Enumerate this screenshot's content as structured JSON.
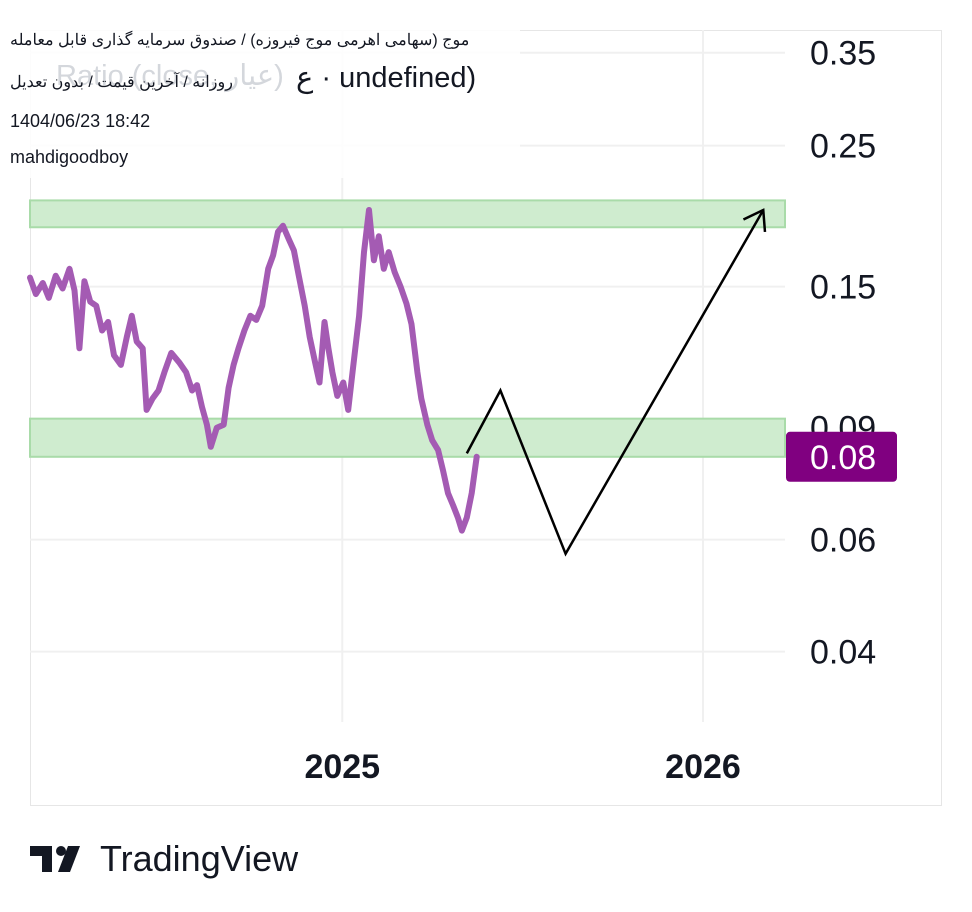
{
  "header": {
    "symbol": "موج (سهامی اهرمی موج فیروزه) / صندوق سرمایه گذاری قابل معامله",
    "interval": "روزانه / آخرین قیمت / بدون تعدیل",
    "watermark": "Ratio (close, عیار)",
    "watermark_suffix": "ع · undefined)",
    "datetime": "1404/06/23 18:42",
    "author": "mahdigoodboy"
  },
  "brand": {
    "name": "TradingView"
  },
  "colors": {
    "series": "#a45bb3",
    "zone_fill": "#cfeccf",
    "zone_border": "#a9dba9",
    "price_tag": "#800080",
    "drawing": "#000000",
    "grid": "#f0f0f0",
    "axis_text": "#131722"
  },
  "chart_data": {
    "type": "line",
    "y_scale": "log",
    "ylim": [
      0.031,
      0.38
    ],
    "y_ticks": [
      "0.35",
      "0.25",
      "0.15",
      "0.09",
      "0.06",
      "0.04"
    ],
    "y_tick_values": [
      0.35,
      0.25,
      0.15,
      0.09,
      0.06,
      0.04
    ],
    "x_ticks": [
      "2025",
      "2026"
    ],
    "x_tick_dates": [
      "2025-01-01",
      "2026-01-01"
    ],
    "xlim": [
      "2024-02-20",
      "2026-03-25"
    ],
    "last_price_label": "0.08",
    "last_price": 0.081,
    "zones": [
      {
        "from": 0.186,
        "to": 0.205
      },
      {
        "from": 0.081,
        "to": 0.093
      }
    ],
    "series": [
      {
        "values": [
          [
            "2024-02-20",
            0.155
          ],
          [
            "2024-02-26",
            0.146
          ],
          [
            "2024-03-04",
            0.152
          ],
          [
            "2024-03-10",
            0.144
          ],
          [
            "2024-03-17",
            0.156
          ],
          [
            "2024-03-24",
            0.149
          ],
          [
            "2024-03-31",
            0.16
          ],
          [
            "2024-04-05",
            0.148
          ],
          [
            "2024-04-10",
            0.12
          ],
          [
            "2024-04-15",
            0.153
          ],
          [
            "2024-04-21",
            0.142
          ],
          [
            "2024-04-27",
            0.14
          ],
          [
            "2024-05-03",
            0.128
          ],
          [
            "2024-05-09",
            0.132
          ],
          [
            "2024-05-15",
            0.117
          ],
          [
            "2024-05-22",
            0.113
          ],
          [
            "2024-05-28",
            0.125
          ],
          [
            "2024-06-02",
            0.135
          ],
          [
            "2024-06-07",
            0.123
          ],
          [
            "2024-06-13",
            0.12
          ],
          [
            "2024-06-17",
            0.096
          ],
          [
            "2024-06-23",
            0.1
          ],
          [
            "2024-06-29",
            0.103
          ],
          [
            "2024-07-05",
            0.11
          ],
          [
            "2024-07-12",
            0.118
          ],
          [
            "2024-07-20",
            0.114
          ],
          [
            "2024-07-27",
            0.11
          ],
          [
            "2024-08-02",
            0.103
          ],
          [
            "2024-08-07",
            0.105
          ],
          [
            "2024-08-12",
            0.097
          ],
          [
            "2024-08-17",
            0.091
          ],
          [
            "2024-08-21",
            0.084
          ],
          [
            "2024-08-27",
            0.09
          ],
          [
            "2024-09-03",
            0.091
          ],
          [
            "2024-09-08",
            0.104
          ],
          [
            "2024-09-13",
            0.113
          ],
          [
            "2024-09-18",
            0.12
          ],
          [
            "2024-09-24",
            0.128
          ],
          [
            "2024-09-30",
            0.135
          ],
          [
            "2024-10-06",
            0.133
          ],
          [
            "2024-10-12",
            0.14
          ],
          [
            "2024-10-18",
            0.16
          ],
          [
            "2024-10-23",
            0.168
          ],
          [
            "2024-10-28",
            0.183
          ],
          [
            "2024-11-02",
            0.187
          ],
          [
            "2024-11-08",
            0.178
          ],
          [
            "2024-11-13",
            0.171
          ],
          [
            "2024-11-18",
            0.156
          ],
          [
            "2024-11-24",
            0.14
          ],
          [
            "2024-11-29",
            0.125
          ],
          [
            "2024-12-04",
            0.115
          ],
          [
            "2024-12-09",
            0.106
          ],
          [
            "2024-12-14",
            0.132
          ],
          [
            "2024-12-18",
            0.12
          ],
          [
            "2024-12-22",
            0.11
          ],
          [
            "2024-12-27",
            0.101
          ],
          [
            "2025-01-02",
            0.106
          ],
          [
            "2025-01-07",
            0.096
          ],
          [
            "2025-01-12",
            0.112
          ],
          [
            "2025-01-18",
            0.135
          ],
          [
            "2025-01-23",
            0.17
          ],
          [
            "2025-01-28",
            0.198
          ],
          [
            "2025-02-02",
            0.165
          ],
          [
            "2025-02-07",
            0.18
          ],
          [
            "2025-02-12",
            0.16
          ],
          [
            "2025-02-17",
            0.17
          ],
          [
            "2025-02-23",
            0.158
          ],
          [
            "2025-03-01",
            0.15
          ],
          [
            "2025-03-07",
            0.141
          ],
          [
            "2025-03-12",
            0.131
          ],
          [
            "2025-03-18",
            0.11
          ],
          [
            "2025-03-22",
            0.1
          ],
          [
            "2025-03-28",
            0.091
          ],
          [
            "2025-04-02",
            0.086
          ],
          [
            "2025-04-08",
            0.083
          ],
          [
            "2025-04-13",
            0.077
          ],
          [
            "2025-04-18",
            0.071
          ],
          [
            "2025-04-23",
            0.068
          ],
          [
            "2025-04-28",
            0.065
          ],
          [
            "2025-05-02",
            0.062
          ],
          [
            "2025-05-07",
            0.065
          ],
          [
            "2025-05-12",
            0.071
          ],
          [
            "2025-05-17",
            0.081
          ]
        ]
      }
    ],
    "drawing": {
      "type": "polyline-arrow",
      "points": [
        [
          "2025-05-07",
          0.082
        ],
        [
          "2025-06-10",
          0.103
        ],
        [
          "2025-08-15",
          0.057
        ],
        [
          "2026-03-03",
          0.198
        ]
      ]
    }
  }
}
